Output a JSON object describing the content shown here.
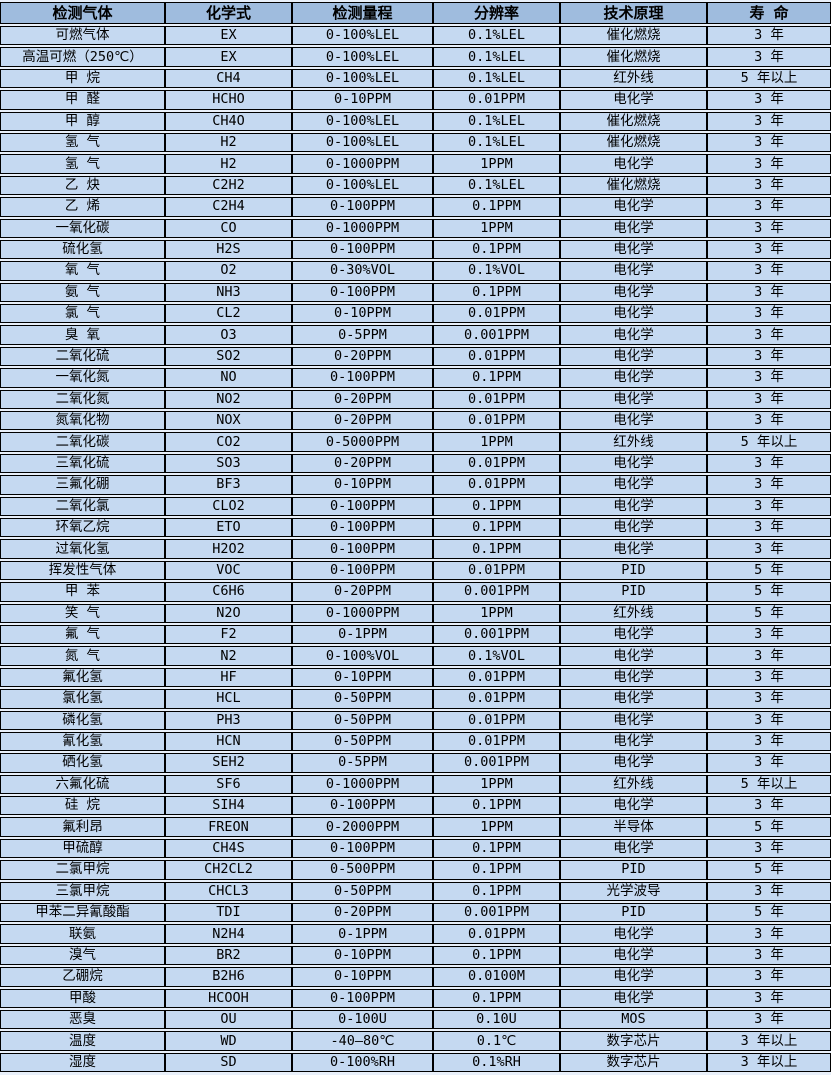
{
  "colors": {
    "header_bg": "#9FBCDE",
    "cell_bg": "#C5D9F1",
    "border": "#000000",
    "gap_bg": "#E9F0FA",
    "text": "#000000"
  },
  "table": {
    "headers": [
      "检测气体",
      "化学式",
      "检测量程",
      "分辨率",
      "技术原理",
      "寿 命"
    ],
    "rows": [
      [
        "可燃气体",
        "EX",
        "0-100%LEL",
        "0.1%LEL",
        "催化燃烧",
        "3 年"
      ],
      [
        "高温可燃（250℃）",
        "EX",
        "0-100%LEL",
        "0.1%LEL",
        "催化燃烧",
        "3 年"
      ],
      [
        "甲 烷",
        "CH4",
        "0-100%LEL",
        "0.1%LEL",
        "红外线",
        "5 年以上"
      ],
      [
        "甲 醛",
        "HCHO",
        "0-10PPM",
        "0.01PPM",
        "电化学",
        "3 年"
      ],
      [
        "甲 醇",
        "CH4O",
        "0-100%LEL",
        "0.1%LEL",
        "催化燃烧",
        "3 年"
      ],
      [
        "氢 气",
        "H2",
        "0-100%LEL",
        "0.1%LEL",
        "催化燃烧",
        "3 年"
      ],
      [
        "氢 气",
        "H2",
        "0-1000PPM",
        "1PPM",
        "电化学",
        "3 年"
      ],
      [
        "乙 炔",
        "C2H2",
        "0-100%LEL",
        "0.1%LEL",
        "催化燃烧",
        "3 年"
      ],
      [
        "乙 烯",
        "C2H4",
        "0-100PPM",
        "0.1PPM",
        "电化学",
        "3 年"
      ],
      [
        "一氧化碳",
        "CO",
        "0-1000PPM",
        "1PPM",
        "电化学",
        "3 年"
      ],
      [
        "硫化氢",
        "H2S",
        "0-100PPM",
        "0.1PPM",
        "电化学",
        "3 年"
      ],
      [
        "氧 气",
        "O2",
        "0-30%VOL",
        "0.1%VOL",
        "电化学",
        "3 年"
      ],
      [
        "氨 气",
        "NH3",
        "0-100PPM",
        "0.1PPM",
        "电化学",
        "3 年"
      ],
      [
        "氯 气",
        "CL2",
        "0-10PPM",
        "0.01PPM",
        "电化学",
        "3 年"
      ],
      [
        "臭 氧",
        "O3",
        "0-5PPM",
        "0.001PPM",
        "电化学",
        "3 年"
      ],
      [
        "二氧化硫",
        "SO2",
        "0-20PPM",
        "0.01PPM",
        "电化学",
        "3 年"
      ],
      [
        "一氧化氮",
        "NO",
        "0-100PPM",
        "0.1PPM",
        "电化学",
        "3 年"
      ],
      [
        "二氧化氮",
        "NO2",
        "0-20PPM",
        "0.01PPM",
        "电化学",
        "3 年"
      ],
      [
        "氮氧化物",
        "NOX",
        "0-20PPM",
        "0.01PPM",
        "电化学",
        "3 年"
      ],
      [
        "二氧化碳",
        "CO2",
        "0-5000PPM",
        "1PPM",
        "红外线",
        "5 年以上"
      ],
      [
        "三氧化硫",
        "SO3",
        "0-20PPM",
        "0.01PPM",
        "电化学",
        "3 年"
      ],
      [
        "三氟化硼",
        "BF3",
        "0-10PPM",
        "0.01PPM",
        "电化学",
        "3 年"
      ],
      [
        "二氧化氯",
        "CLO2",
        "0-100PPM",
        "0.1PPM",
        "电化学",
        "3 年"
      ],
      [
        "环氧乙烷",
        "ETO",
        "0-100PPM",
        "0.1PPM",
        "电化学",
        "3 年"
      ],
      [
        "过氧化氢",
        "H2O2",
        "0-100PPM",
        "0.1PPM",
        "电化学",
        "3 年"
      ],
      [
        "挥发性气体",
        "VOC",
        "0-100PPM",
        "0.01PPM",
        "PID",
        "5 年"
      ],
      [
        "甲 苯",
        "C6H6",
        "0-20PPM",
        "0.001PPM",
        "PID",
        "5 年"
      ],
      [
        "笑 气",
        "N2O",
        "0-1000PPM",
        "1PPM",
        "红外线",
        "5 年"
      ],
      [
        "氟 气",
        "F2",
        "0-1PPM",
        "0.001PPM",
        "电化学",
        "3 年"
      ],
      [
        "氮 气",
        "N2",
        "0-100%VOL",
        "0.1%VOL",
        "电化学",
        "3 年"
      ],
      [
        "氟化氢",
        "HF",
        "0-10PPM",
        "0.01PPM",
        "电化学",
        "3 年"
      ],
      [
        "氯化氢",
        "HCL",
        "0-50PPM",
        "0.01PPM",
        "电化学",
        "3 年"
      ],
      [
        "磷化氢",
        "PH3",
        "0-50PPM",
        "0.01PPM",
        "电化学",
        "3 年"
      ],
      [
        "氰化氢",
        "HCN",
        "0-50PPM",
        "0.01PPM",
        "电化学",
        "3 年"
      ],
      [
        "硒化氢",
        "SEH2",
        "0-5PPM",
        "0.001PPM",
        "电化学",
        "3 年"
      ],
      [
        "六氟化硫",
        "SF6",
        "0-1000PPM",
        "1PPM",
        "红外线",
        "5 年以上"
      ],
      [
        "硅 烷",
        "SIH4",
        "0-100PPM",
        "0.1PPM",
        "电化学",
        "3 年"
      ],
      [
        "氟利昂",
        "FREON",
        "0-2000PPM",
        "1PPM",
        "半导体",
        "5 年"
      ],
      [
        "甲硫醇",
        "CH4S",
        "0-100PPM",
        "0.1PPM",
        "电化学",
        "3 年"
      ],
      [
        "二氯甲烷",
        "CH2CL2",
        "0-500PPM",
        "0.1PPM",
        "PID",
        "5 年"
      ],
      [
        "三氯甲烷",
        "CHCL3",
        "0-50PPM",
        "0.1PPM",
        "光学波导",
        "3 年"
      ],
      [
        "甲苯二异氰酸酯",
        "TDI",
        "0-20PPM",
        "0.001PPM",
        "PID",
        "5 年"
      ],
      [
        "联氨",
        "N2H4",
        "0-1PPM",
        "0.01PPM",
        "电化学",
        "3 年"
      ],
      [
        "溴气",
        "BR2",
        "0-10PPM",
        "0.1PPM",
        "电化学",
        "3 年"
      ],
      [
        "乙硼烷",
        "B2H6",
        "0-10PPM",
        "0.0100M",
        "电化学",
        "3 年"
      ],
      [
        "甲酸",
        "HCOOH",
        "0-100PPM",
        "0.1PPM",
        "电化学",
        "3 年"
      ],
      [
        "恶臭",
        "OU",
        "0-100U",
        "0.10U",
        "MOS",
        "3 年"
      ],
      [
        "温度",
        "WD",
        "-40—80℃",
        "0.1℃",
        "数字芯片",
        "3 年以上"
      ],
      [
        "湿度",
        "SD",
        "0-100%RH",
        "0.1%RH",
        "数字芯片",
        "3 年以上"
      ]
    ]
  }
}
